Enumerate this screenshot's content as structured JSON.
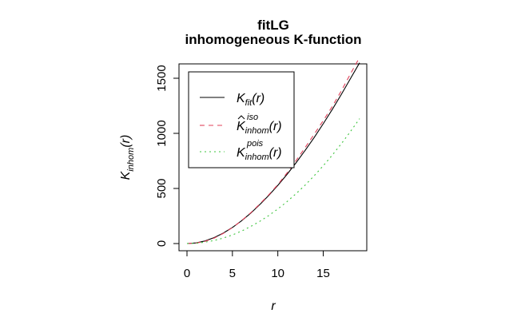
{
  "chart_data": {
    "type": "line",
    "title": "fitLG",
    "subtitle": "inhomogeneous K-function",
    "xlabel": "r",
    "ylabel": {
      "base": "K",
      "sub": "inhom",
      "suffix": "(r)"
    },
    "xlim": [
      0,
      19
    ],
    "ylim": [
      0,
      1700
    ],
    "xticks": [
      0,
      5,
      10,
      15
    ],
    "yticks": [
      0,
      500,
      1000,
      1500
    ],
    "legend_position": "top-left",
    "series": [
      {
        "name": "K_fit(r)",
        "legend": {
          "hat": false,
          "base": "K",
          "sub": "fit",
          "sup": "",
          "suffix": "(r)"
        },
        "color": "#000000",
        "dash": "",
        "x": [
          0,
          1,
          2,
          3,
          4,
          5,
          6,
          7,
          8,
          9,
          10,
          11,
          12,
          13,
          14,
          15,
          16,
          17,
          18,
          19
        ],
        "values": [
          0,
          6,
          24,
          54,
          95,
          146,
          206,
          275,
          352,
          436,
          528,
          627,
          732,
          845,
          962,
          1087,
          1218,
          1355,
          1497,
          1640
        ]
      },
      {
        "name": "K^iso_inhom(r)",
        "legend": {
          "hat": true,
          "base": "K",
          "sub": "inhom",
          "sup": "iso",
          "suffix": "(r)"
        },
        "color": "#e0405a",
        "dash": "6,5",
        "x": [
          0,
          1,
          2,
          3,
          4,
          5,
          6,
          7,
          8,
          9,
          10,
          11,
          12,
          13,
          14,
          15,
          16,
          17,
          18,
          19
        ],
        "values": [
          0,
          4,
          20,
          50,
          92,
          145,
          207,
          278,
          357,
          442,
          535,
          640,
          752,
          870,
          992,
          1115,
          1245,
          1388,
          1540,
          1690
        ]
      },
      {
        "name": "K^pois_inhom(r)",
        "legend": {
          "hat": false,
          "base": "K",
          "sub": "inhom",
          "sup": "pois",
          "suffix": "(r)"
        },
        "color": "#3cc43c",
        "dash": "2,4",
        "x": [
          0,
          1,
          2,
          3,
          4,
          5,
          6,
          7,
          8,
          9,
          10,
          11,
          12,
          13,
          14,
          15,
          16,
          17,
          18,
          19
        ],
        "values": [
          0,
          3,
          13,
          28,
          50,
          78,
          113,
          154,
          201,
          254,
          314,
          380,
          452,
          530,
          615,
          706,
          803,
          907,
          1017,
          1133
        ]
      }
    ]
  }
}
